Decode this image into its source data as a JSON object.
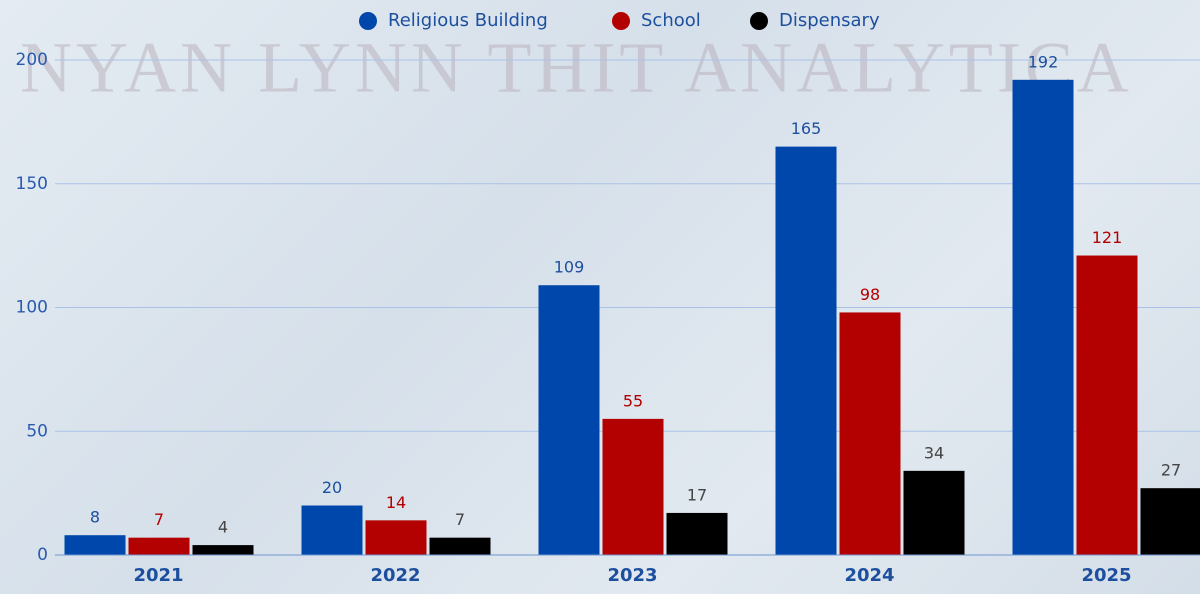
{
  "chart_data": {
    "type": "bar",
    "watermark": "NYAN LYNN THIT ANALYTICA",
    "categories": [
      "2021",
      "2022",
      "2023",
      "2024",
      "2025"
    ],
    "series": [
      {
        "name": "Religious Building",
        "color": "#0047ab",
        "label_color": "#1d4f9f",
        "values": [
          8,
          20,
          109,
          165,
          192
        ]
      },
      {
        "name": "School",
        "color": "#b30000",
        "label_color": "#b30000",
        "values": [
          7,
          14,
          55,
          98,
          121
        ]
      },
      {
        "name": "Dispensary",
        "color": "#000000",
        "label_color": "#444444",
        "values": [
          4,
          7,
          17,
          34,
          27
        ]
      }
    ],
    "ylim": [
      0,
      200
    ],
    "yticks": [
      0,
      50,
      100,
      150,
      200
    ],
    "grid": true,
    "legend": "top"
  }
}
